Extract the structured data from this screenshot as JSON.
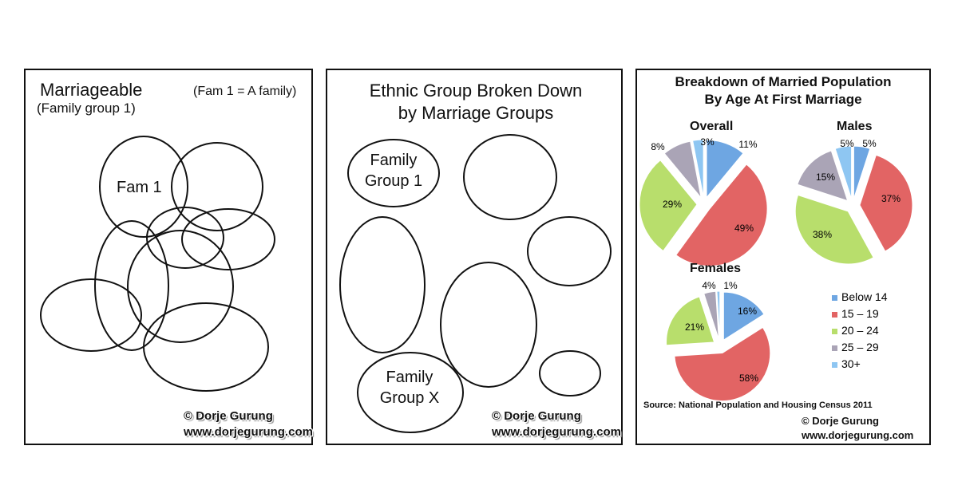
{
  "panel1": {
    "title": "Marriageable",
    "subtitle": "(Family group 1)",
    "note": "(Fam 1 = A family)",
    "ellipse_label": "Fam 1"
  },
  "panel2": {
    "title_line1": "Ethnic Group Broken Down",
    "title_line2": "by Marriage Groups",
    "group1_line1": "Family",
    "group1_line2": "Group 1",
    "groupx_line1": "Family",
    "groupx_line2": "Group X"
  },
  "watermark": {
    "copyright": "© Dorje Gurung",
    "url": "www.dorjegurung.com"
  },
  "panel3": {
    "title_line1": "Breakdown of Married Population",
    "title_line2": "By Age At First Marriage",
    "source": "Source: National Population and Housing Census 2011"
  },
  "chart_data": [
    {
      "type": "pie",
      "title": "Overall",
      "categories": [
        "Below 14",
        "15 – 19",
        "20 – 24",
        "25 – 29",
        "30+"
      ],
      "values": [
        11,
        49,
        29,
        8,
        3
      ],
      "labels": [
        "11%",
        "49%",
        "29%",
        "8%",
        "3%"
      ]
    },
    {
      "type": "pie",
      "title": "Males",
      "categories": [
        "Below 14",
        "15 – 19",
        "20 – 24",
        "25 – 29",
        "30+"
      ],
      "values": [
        5,
        37,
        38,
        15,
        5
      ],
      "labels": [
        "5%",
        "37%",
        "38%",
        "15%",
        "5%"
      ]
    },
    {
      "type": "pie",
      "title": "Females",
      "categories": [
        "Below 14",
        "15 – 19",
        "20 – 24",
        "25 – 29",
        "30+"
      ],
      "values": [
        16,
        58,
        21,
        4,
        1
      ],
      "labels": [
        "16%",
        "58%",
        "21%",
        "4%",
        "1%"
      ],
      "legend": "right"
    }
  ],
  "colors": [
    "#6ea6e2",
    "#e26464",
    "#b8de6c",
    "#aaa4b6",
    "#8ec6f2"
  ]
}
